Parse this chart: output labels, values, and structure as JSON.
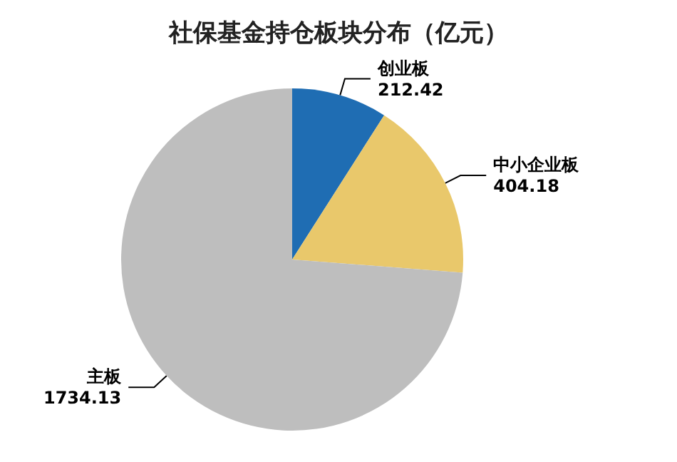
{
  "chart_data": {
    "type": "pie",
    "title": "社保基金持仓板块分布（亿元）",
    "categories": [
      "创业板",
      "中小企业板",
      "主板"
    ],
    "values": [
      212.42,
      404.18,
      1734.13
    ],
    "colors": [
      "#1f6db3",
      "#e9c86b",
      "#bebebe"
    ],
    "data_labels": true,
    "legend": false
  }
}
